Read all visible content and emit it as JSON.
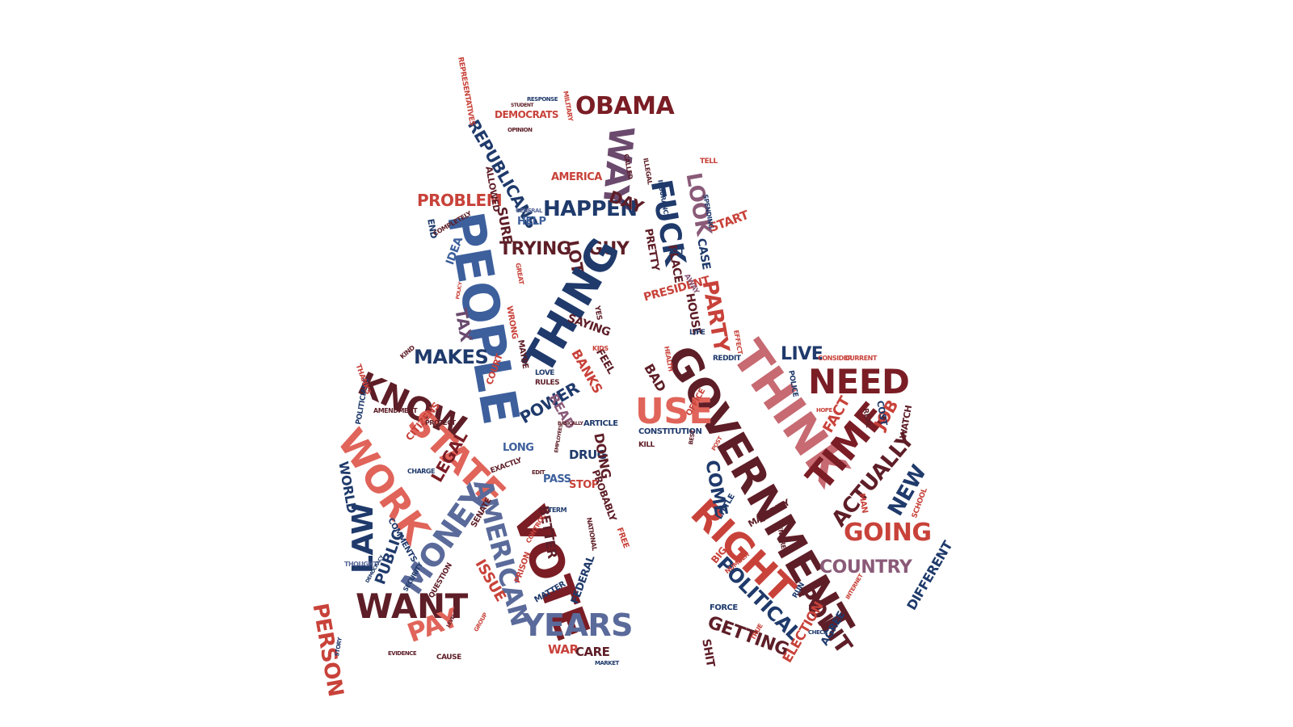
{
  "palette": {
    "navy": "#1f3a6b",
    "blue": "#3d5f9c",
    "slate": "#5a6a9a",
    "maroon": "#5e1e27",
    "darkred": "#7a1d25",
    "red": "#c8423a",
    "coral": "#e0645a",
    "rose": "#c76a72",
    "plum": "#6b4a6e",
    "mauve": "#8a5a78"
  },
  "words": [
    {
      "text": "OBAMA",
      "color": "#7a1d25"
    },
    {
      "text": "WAY",
      "color": "#6b4a6e"
    },
    {
      "text": "DEMOCRATS",
      "color": "#c8423a"
    },
    {
      "text": "REPUBLICANS",
      "color": "#1f3a6b"
    },
    {
      "text": "REPRESENTATIVES",
      "color": "#c8423a"
    },
    {
      "text": "AMERICA",
      "color": "#c8423a"
    },
    {
      "text": "FUCK",
      "color": "#1f3a6b"
    },
    {
      "text": "LOOK",
      "color": "#8a5a78"
    },
    {
      "text": "HAPPEN",
      "color": "#1f3a6b"
    },
    {
      "text": "DAY",
      "color": "#5e1e27"
    },
    {
      "text": "PROBLEM",
      "color": "#c8423a"
    },
    {
      "text": "PEOPLE",
      "color": "#3d5f9c"
    },
    {
      "text": "SURE",
      "color": "#5e1e27"
    },
    {
      "text": "HELP",
      "color": "#3d5f9c"
    },
    {
      "text": "TRYING",
      "color": "#5e1e27"
    },
    {
      "text": "GUY",
      "color": "#5e1e27"
    },
    {
      "text": "LOT",
      "color": "#5e1e27"
    },
    {
      "text": "PRETTY",
      "color": "#5e1e27"
    },
    {
      "text": "START",
      "color": "#c8423a"
    },
    {
      "text": "CASE",
      "color": "#1f3a6b"
    },
    {
      "text": "PLACE",
      "color": "#5e1e27"
    },
    {
      "text": "PRESIDENT",
      "color": "#c8423a"
    },
    {
      "text": "PARTY",
      "color": "#c8423a"
    },
    {
      "text": "HOUSE",
      "color": "#5e1e27"
    },
    {
      "text": "THINK",
      "color": "#c76a72"
    },
    {
      "text": "GOVERNMENT",
      "color": "#5e1e27"
    },
    {
      "text": "NEED",
      "color": "#7a1d25"
    },
    {
      "text": "LIVE",
      "color": "#1f3a6b"
    },
    {
      "text": "TIME",
      "color": "#7a1d25"
    },
    {
      "text": "ACTUALLY",
      "color": "#5e1e27"
    },
    {
      "text": "NEW",
      "color": "#1f3a6b"
    },
    {
      "text": "JOB",
      "color": "#c8423a"
    },
    {
      "text": "FACT",
      "color": "#c8423a"
    },
    {
      "text": "GOING",
      "color": "#c8423a"
    },
    {
      "text": "COUNTRY",
      "color": "#8a5a78"
    },
    {
      "text": "RIGHT",
      "color": "#c8423a"
    },
    {
      "text": "POINT",
      "color": "#5e1e27"
    },
    {
      "text": "POLITICAL",
      "color": "#1f3a6b"
    },
    {
      "text": "GETTING",
      "color": "#5e1e27"
    },
    {
      "text": "ELECTION",
      "color": "#c8423a"
    },
    {
      "text": "AGREE",
      "color": "#1f3a6b"
    },
    {
      "text": "DIFFERENT",
      "color": "#1f3a6b"
    },
    {
      "text": "COME",
      "color": "#1f3a6b"
    },
    {
      "text": "USE",
      "color": "#e0645a"
    },
    {
      "text": "BAD",
      "color": "#5e1e27"
    },
    {
      "text": "KNOW",
      "color": "#5e1e27"
    },
    {
      "text": "THING",
      "color": "#1f3a6b"
    },
    {
      "text": "MAKES",
      "color": "#1f3a6b"
    },
    {
      "text": "TAX",
      "color": "#6b4a6e"
    },
    {
      "text": "IDEA",
      "color": "#3d5f9c"
    },
    {
      "text": "WORK",
      "color": "#e0645a"
    },
    {
      "text": "STATE",
      "color": "#e0645a"
    },
    {
      "text": "LAW",
      "color": "#1f3a6b"
    },
    {
      "text": "MONEY",
      "color": "#5a6a9a"
    },
    {
      "text": "WANT",
      "color": "#5e1e27"
    },
    {
      "text": "PERSON",
      "color": "#c8423a"
    },
    {
      "text": "PAY",
      "color": "#e0645a"
    },
    {
      "text": "PUBLIC",
      "color": "#1f3a6b"
    },
    {
      "text": "WORLD",
      "color": "#1f3a6b"
    },
    {
      "text": "LEGAL",
      "color": "#7a1d25"
    },
    {
      "text": "AMERICAN",
      "color": "#5a6a9a"
    },
    {
      "text": "VOTE",
      "color": "#7a1d25"
    },
    {
      "text": "YEARS",
      "color": "#5a6a9a"
    },
    {
      "text": "BETTER",
      "color": "#5e1e27"
    },
    {
      "text": "ISSUE",
      "color": "#c8423a"
    },
    {
      "text": "POWER",
      "color": "#1f3a6b"
    },
    {
      "text": "DRUG",
      "color": "#1f3a6b"
    },
    {
      "text": "DOING",
      "color": "#5e1e27"
    },
    {
      "text": "STOP",
      "color": "#c8423a"
    },
    {
      "text": "PASS",
      "color": "#3d5f9c"
    },
    {
      "text": "LONG",
      "color": "#3d5f9c"
    },
    {
      "text": "READ",
      "color": "#8a5a78"
    },
    {
      "text": "BANKS",
      "color": "#c8423a"
    },
    {
      "text": "FEEL",
      "color": "#5e1e27"
    },
    {
      "text": "SAYING",
      "color": "#5e1e27"
    },
    {
      "text": "WAR",
      "color": "#c8423a"
    },
    {
      "text": "CARE",
      "color": "#5e1e27"
    },
    {
      "text": "FEDERAL",
      "color": "#1f3a6b"
    },
    {
      "text": "PROBABLY",
      "color": "#5e1e27"
    },
    {
      "text": "COURT",
      "color": "#c8423a"
    },
    {
      "text": "CITIZENS",
      "color": "#c8423a"
    },
    {
      "text": "ALLOWED",
      "color": "#5e1e27"
    },
    {
      "text": "END",
      "color": "#1f3a6b"
    },
    {
      "text": "COMPLETELY",
      "color": "#5e1e27"
    },
    {
      "text": "WRONG",
      "color": "#c8423a"
    },
    {
      "text": "MAYBE",
      "color": "#5e1e27"
    },
    {
      "text": "RULES",
      "color": "#5e1e27"
    },
    {
      "text": "LOVE",
      "color": "#1f3a6b"
    },
    {
      "text": "ARTICLE",
      "color": "#1f3a6b"
    },
    {
      "text": "CONSTITUTION",
      "color": "#1f3a6b"
    },
    {
      "text": "KILL",
      "color": "#5e1e27"
    },
    {
      "text": "OFFICE",
      "color": "#c8423a"
    },
    {
      "text": "REDDIT",
      "color": "#1f3a6b"
    },
    {
      "text": "POLICE",
      "color": "#1f3a6b"
    },
    {
      "text": "LITTLE",
      "color": "#1f3a6b"
    },
    {
      "text": "MAJORITY",
      "color": "#5e1e27"
    },
    {
      "text": "BIG",
      "color": "#c8423a"
    },
    {
      "text": "FORCE",
      "color": "#1f3a6b"
    },
    {
      "text": "SHIT",
      "color": "#5e1e27"
    },
    {
      "text": "MAN",
      "color": "#c8423a"
    },
    {
      "text": "SCHOOL",
      "color": "#c8423a"
    },
    {
      "text": "WATCH",
      "color": "#5e1e27"
    },
    {
      "text": "COST",
      "color": "#1f3a6b"
    },
    {
      "text": "REAL",
      "color": "#5e1e27"
    },
    {
      "text": "EXACTLY",
      "color": "#5e1e27"
    },
    {
      "text": "COMMENTS",
      "color": "#1f3a6b"
    },
    {
      "text": "SENATE",
      "color": "#5e1e27"
    },
    {
      "text": "FREE",
      "color": "#c8423a"
    },
    {
      "text": "MATTER",
      "color": "#1f3a6b"
    },
    {
      "text": "PRISON",
      "color": "#c8423a"
    },
    {
      "text": "CONTROL",
      "color": "#c8423a"
    },
    {
      "text": "TERM",
      "color": "#1f3a6b"
    },
    {
      "text": "NATIONAL",
      "color": "#5e1e27"
    },
    {
      "text": "SECURITY",
      "color": "#1f3a6b"
    },
    {
      "text": "QUESTION",
      "color": "#5e1e27"
    },
    {
      "text": "CAUSE",
      "color": "#5e1e27"
    },
    {
      "text": "POLITICIANS",
      "color": "#1f3a6b"
    },
    {
      "text": "THANKS",
      "color": "#c8423a"
    },
    {
      "text": "AMENDMENT",
      "color": "#5e1e27"
    },
    {
      "text": "KIND",
      "color": "#5e1e27"
    },
    {
      "text": "LIFE",
      "color": "#1f3a6b"
    },
    {
      "text": "YES",
      "color": "#5e1e27"
    },
    {
      "text": "AWAY",
      "color": "#8a5a78"
    },
    {
      "text": "ACT",
      "color": "#1f3a6b"
    },
    {
      "text": "TELL",
      "color": "#c8423a"
    },
    {
      "text": "SPENDING",
      "color": "#1f3a6b"
    },
    {
      "text": "CALLED",
      "color": "#5e1e27"
    },
    {
      "text": "ILLEGAL",
      "color": "#5e1e27"
    },
    {
      "text": "INSURANCE",
      "color": "#1f3a6b"
    },
    {
      "text": "MILITARY",
      "color": "#c8423a"
    },
    {
      "text": "RESPONSE",
      "color": "#1f3a6b"
    },
    {
      "text": "STUDENT",
      "color": "#5e1e27"
    },
    {
      "text": "OPINION",
      "color": "#5e1e27"
    },
    {
      "text": "GREAT",
      "color": "#c8423a"
    },
    {
      "text": "GENERAL",
      "color": "#5a6a9a"
    },
    {
      "text": "KIDS",
      "color": "#c8423a"
    },
    {
      "text": "HEALTH",
      "color": "#c8423a"
    },
    {
      "text": "EFFECT",
      "color": "#c8423a"
    },
    {
      "text": "HOPE",
      "color": "#c8423a"
    },
    {
      "text": "CURRENT",
      "color": "#c8423a"
    },
    {
      "text": "CONSIDER",
      "color": "#c8423a"
    },
    {
      "text": "ENTIRE",
      "color": "#5e1e27"
    },
    {
      "text": "NUMBER",
      "color": "#c8423a"
    },
    {
      "text": "EDIT",
      "color": "#5e1e27"
    },
    {
      "text": "MARKET",
      "color": "#1f3a6b"
    },
    {
      "text": "PROTECT",
      "color": "#5e1e27"
    },
    {
      "text": "CHARGE",
      "color": "#1f3a6b"
    },
    {
      "text": "EVIDENCE",
      "color": "#5e1e27"
    },
    {
      "text": "GROUP",
      "color": "#c8423a"
    },
    {
      "text": "CHECK",
      "color": "#1f3a6b"
    },
    {
      "text": "STORY",
      "color": "#1f3a6b"
    },
    {
      "text": "THOUGHT",
      "color": "#5a6a9a"
    },
    {
      "text": "TRUE",
      "color": "#c8423a"
    },
    {
      "text": "RUN",
      "color": "#1f3a6b"
    },
    {
      "text": "INTERNET",
      "color": "#c8423a"
    },
    {
      "text": "BEST",
      "color": "#5e1e27"
    },
    {
      "text": "POST",
      "color": "#c8423a"
    },
    {
      "text": "POLICY",
      "color": "#c8423a"
    },
    {
      "text": "BASICALLY",
      "color": "#5e1e27"
    },
    {
      "text": "EMPLOYEES",
      "color": "#5e1e27"
    },
    {
      "text": "DEMOCRACY",
      "color": "#1f3a6b"
    },
    {
      "text": "LEVEL",
      "color": "#5e1e27"
    }
  ]
}
